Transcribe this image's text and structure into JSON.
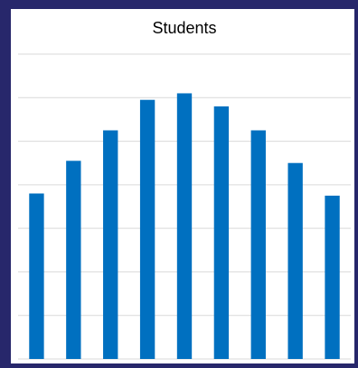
{
  "chart_data": {
    "type": "bar",
    "title": "Students",
    "categories": [
      null,
      null,
      null,
      null,
      null,
      null,
      null,
      null,
      null
    ],
    "values": [
      3.8,
      4.55,
      5.25,
      5.95,
      6.1,
      5.8,
      5.25,
      4.5,
      3.75
    ],
    "color": "#0070c0",
    "ylim": [
      0,
      7
    ],
    "yticks": [
      0,
      1,
      2,
      3,
      4,
      5,
      6,
      7
    ],
    "grid": true
  }
}
